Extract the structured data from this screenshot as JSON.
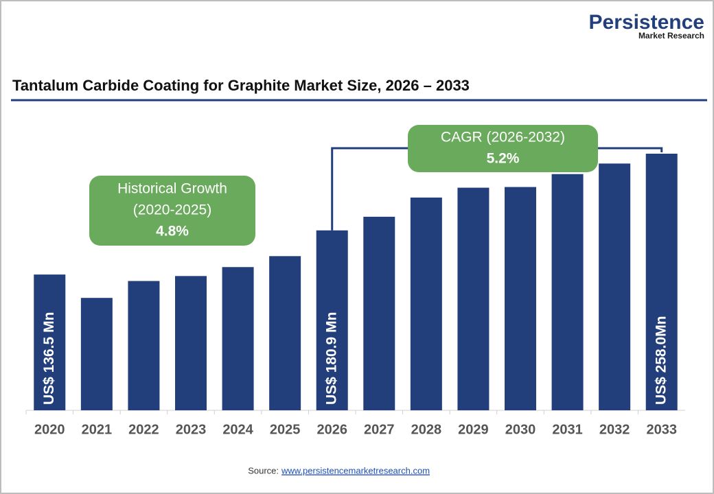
{
  "chart_data": {
    "type": "bar",
    "title": "Tantalum Carbide Coating for Graphite Market Size, 2026 – 2033",
    "categories": [
      "2020",
      "2021",
      "2022",
      "2023",
      "2024",
      "2025",
      "2026",
      "2027",
      "2028",
      "2029",
      "2030",
      "2031",
      "2032",
      "2033"
    ],
    "values": [
      136.5,
      113,
      130,
      135,
      144,
      155,
      180.9,
      194.6,
      213.9,
      223.8,
      224.5,
      237.5,
      248.1,
      258
    ],
    "value_labels": [
      "US$ 136.5 Mn",
      null,
      null,
      null,
      null,
      null,
      "US$ 180.9 Mn",
      null,
      null,
      null,
      null,
      null,
      null,
      "US$ 258.0Mn"
    ],
    "color": "#223f7c",
    "annotations": [
      {
        "lines": [
          "Historical Growth",
          "(2020-2025)",
          "4.8%"
        ]
      },
      {
        "lines": [
          "CAGR (2026-2032)",
          "5.2%"
        ]
      }
    ]
  },
  "logo": {
    "name": "Persistence",
    "tagline": "Market Research"
  },
  "source": {
    "label": "Source:",
    "link": "www.persistencemarketresearch.com"
  }
}
